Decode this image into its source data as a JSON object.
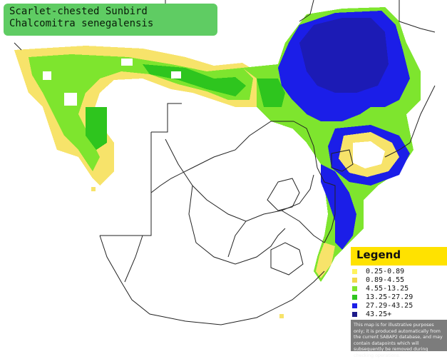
{
  "title": {
    "common_name": "Scarlet-chested Sunbird",
    "scientific_name": "Chalcomitra senegalensis"
  },
  "legend": {
    "heading": "Legend",
    "items": [
      {
        "label": "0.25-0.89",
        "color": "#fff35c"
      },
      {
        "label": "0.89-4.55",
        "color": "#f2d84a"
      },
      {
        "label": "4.55-13.25",
        "color": "#7ee52e"
      },
      {
        "label": "13.25-27.29",
        "color": "#2ec51e"
      },
      {
        "label": "27.29-43.25",
        "color": "#1b1ee8"
      },
      {
        "label": "43.25+",
        "color": "#1d1a8a"
      }
    ],
    "note": "This map is for illustrative purposes only; it is produced automatically from the current SABAP2 database, and may contain datapoints which will subsequently be removed during checking operations."
  },
  "colors": {
    "title_bg": "#5fcc63",
    "legend_heading_bg": "#ffe200",
    "note_bg": "#7c7c7c",
    "border_lines": "#222222"
  }
}
